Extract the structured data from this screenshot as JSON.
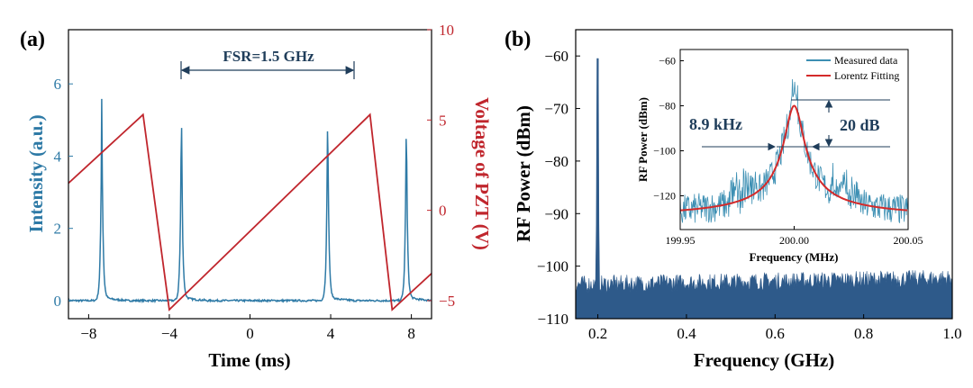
{
  "panel_a": {
    "label": "(a)",
    "annotation": "FSR=1.5 GHz",
    "chart_data": {
      "type": "line",
      "xlabel": "Time (ms)",
      "ylabel_left": "Intensity (a.u.)",
      "ylabel_right": "Voltage of PZT (V)",
      "xlim": [
        -9,
        9
      ],
      "ylim_left": [
        -0.5,
        7.5
      ],
      "ylim_right": [
        -6,
        10
      ],
      "xticks": [
        "-8",
        "-4",
        "0",
        "4",
        "8"
      ],
      "yticks_left": [
        "0",
        "2",
        "4",
        "6"
      ],
      "yticks_right": [
        "-5",
        "0",
        "5",
        "10"
      ],
      "colors": {
        "intensity": "#2e7aa6",
        "voltage": "#c0262d"
      },
      "series": [
        {
          "axis": "left",
          "baseline": 0.0,
          "peaks": [
            {
              "x": -7.35,
              "y": 5.6
            },
            {
              "x": -3.4,
              "y": 5.6
            },
            {
              "x": 3.85,
              "y": 5.6
            },
            {
              "x": 7.75,
              "y": 5.35
            }
          ]
        },
        {
          "axis": "right",
          "x": [
            -9.0,
            -5.3,
            -4.0,
            5.95,
            7.05,
            9.0
          ],
          "y": [
            1.5,
            5.3,
            -5.5,
            5.3,
            -5.5,
            -3.5
          ]
        }
      ]
    }
  },
  "panel_b": {
    "label": "(b)",
    "chart_data": {
      "type": "area",
      "xlabel": "Frequency (GHz)",
      "ylabel": "RF Power (dBm)",
      "xlim": [
        0.15,
        1.0
      ],
      "ylim": [
        -110,
        -55
      ],
      "xticks": [
        "0.2",
        "0.4",
        "0.6",
        "0.8",
        "1.0"
      ],
      "yticks": [
        "-110",
        "-100",
        "-90",
        "-80",
        "-70",
        "-60"
      ],
      "fill_color": "#2e5a8a",
      "noise_floor": -103.5,
      "peak": {
        "x": 0.2,
        "y": -60.5
      }
    },
    "inset": {
      "chart_data": {
        "type": "line",
        "xlabel": "Frequency (MHz)",
        "ylabel": "RF Power (dBm)",
        "xlim": [
          199.95,
          200.05
        ],
        "ylim": [
          -135,
          -55
        ],
        "xticks": [
          "199.95",
          "200.00",
          "200.05"
        ],
        "yticks": [
          "-60",
          "-80",
          "-100",
          "-120"
        ],
        "legend": [
          "Measured data",
          "Lorentz Fitting"
        ],
        "legend_position": "top-right",
        "colors": {
          "measured": "#3c8fb3",
          "fit": "#d42a2a"
        },
        "center": 200.0,
        "peak": -80,
        "floor": -130,
        "annotations": [
          "8.9 kHz",
          "20 dB"
        ]
      }
    }
  }
}
